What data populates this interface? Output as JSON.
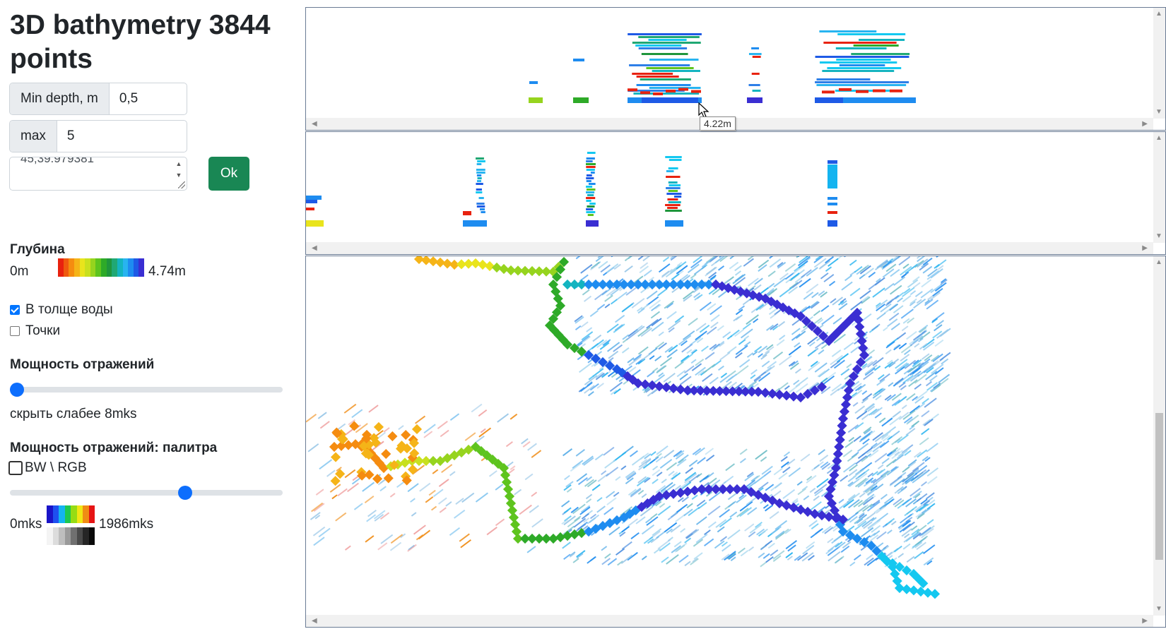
{
  "title": "3D bathymetry 3844 points",
  "min_depth": {
    "label": "Min depth, m",
    "value": "0,5"
  },
  "max_depth": {
    "label": "max",
    "value": "5"
  },
  "coords": {
    "value": "45;39.979381"
  },
  "ok_label": "Ok",
  "depth_legend": {
    "title": "Глубина",
    "min": "0m",
    "max": "4.74m",
    "colors": [
      "#e8220f",
      "#ef5a0f",
      "#f58c10",
      "#f5b418",
      "#e9e41c",
      "#c8e01e",
      "#96d41e",
      "#5ec41e",
      "#2eaa28",
      "#1f963c",
      "#20a874",
      "#14b4c0",
      "#28b4f0",
      "#1e8cf0",
      "#1e5ae6",
      "#3a2ed2"
    ]
  },
  "checkboxes": {
    "in_water": {
      "label": "В толще воды",
      "checked": true
    },
    "points": {
      "label": "Точки",
      "checked": false
    }
  },
  "reflections": {
    "title": "Мощность отражений",
    "slider": 0.0,
    "hide_text": "скрыть слабее 8mks"
  },
  "palette": {
    "title": "Мощность отражений: палитра",
    "bw_rgb_label": "BW \\ RGB",
    "bw_rgb_checked": false,
    "slider": 0.65,
    "min": "0mks",
    "max": "1986mks",
    "rgb_colors": [
      "#1a14c8",
      "#1e50f0",
      "#14b4f0",
      "#1ec850",
      "#96dc14",
      "#f0e614",
      "#f08c14",
      "#e61414"
    ],
    "bw_colors": [
      "#f4f4f4",
      "#dcdcdc",
      "#bebebe",
      "#9a9a9a",
      "#707070",
      "#4a4a4a",
      "#262626",
      "#0a0a0a"
    ]
  },
  "tooltip": "4.22m",
  "colors": {
    "ok_button": "#198754",
    "slider_thumb": "#0d6efd",
    "view_border": "#6a7b94"
  },
  "icons": {
    "scroll_left": "scroll-left-icon",
    "scroll_right": "scroll-right-icon",
    "scroll_up": "scroll-up-icon",
    "scroll_down": "scroll-down-icon",
    "cursor": "mouse-pointer-icon"
  }
}
